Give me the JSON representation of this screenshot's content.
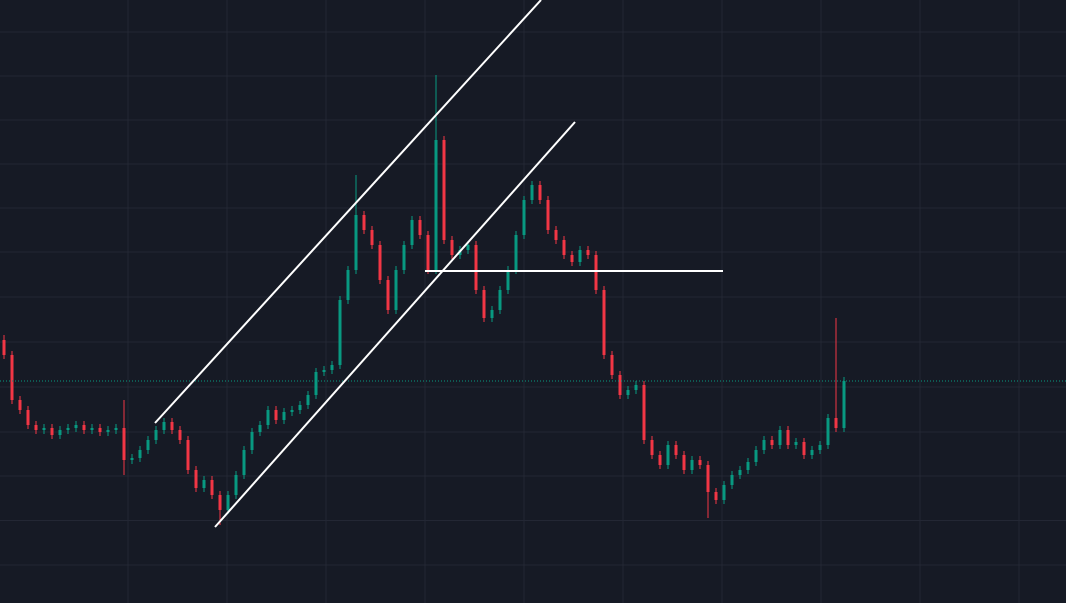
{
  "chart_data": {
    "type": "candlestick",
    "xlim": [
      -0.5,
      132.75
    ],
    "ylim": [
      0,
      603
    ],
    "xticks": [
      15.5,
      27.875,
      40.25,
      52.625,
      65,
      77.375,
      89.75,
      102.125,
      114.5,
      126.875
    ],
    "yticks": [
      38,
      82.5,
      127,
      171,
      216,
      261,
      306,
      351,
      395,
      439,
      483,
      527,
      571
    ],
    "grid": true,
    "up_color": "#089981",
    "down_color": "#f23645",
    "x": [
      0,
      1,
      2,
      3,
      4,
      5,
      6,
      7,
      8,
      9,
      10,
      11,
      12,
      13,
      14,
      15,
      16,
      17,
      18,
      19,
      20,
      21,
      22,
      23,
      24,
      25,
      26,
      27,
      28,
      29,
      30,
      31,
      32,
      33,
      34,
      35,
      36,
      37,
      38,
      39,
      40,
      41,
      42,
      43,
      44,
      45,
      46,
      47,
      48,
      49,
      50,
      51,
      52,
      53,
      54,
      55,
      56,
      57,
      58,
      59,
      60,
      61,
      62,
      63,
      64,
      65,
      66,
      67,
      68,
      69,
      70,
      71,
      72,
      73,
      74,
      75,
      76,
      77,
      78,
      79,
      80,
      81,
      82,
      83,
      84,
      85,
      86,
      87,
      88,
      89,
      90,
      91,
      92,
      93,
      94,
      95,
      96,
      97,
      98,
      99,
      100,
      101,
      102,
      103,
      104,
      105
    ],
    "open": [
      263,
      248,
      203,
      193,
      178,
      173,
      175,
      168,
      173,
      175,
      178,
      173,
      175,
      171,
      173,
      175,
      143,
      145,
      153,
      163,
      173,
      181,
      173,
      163,
      133,
      115,
      123,
      108,
      93,
      108,
      128,
      153,
      171,
      178,
      193,
      183,
      191,
      193,
      198,
      208,
      231,
      233,
      238,
      303,
      333,
      388,
      373,
      358,
      323,
      293,
      333,
      358,
      383,
      368,
      333,
      463,
      363,
      348,
      353,
      358,
      313,
      285,
      293,
      313,
      333,
      368,
      403,
      418,
      403,
      373,
      363,
      348,
      341,
      353,
      348,
      313,
      248,
      228,
      208,
      213,
      218,
      163,
      148,
      138,
      158,
      148,
      133,
      143,
      138,
      111,
      103,
      118,
      128,
      133,
      141,
      153,
      163,
      158,
      173,
      158,
      161,
      148,
      153,
      158,
      185,
      175
    ],
    "high": [
      268,
      252,
      207,
      197,
      182,
      179,
      179,
      177,
      179,
      182,
      182,
      179,
      179,
      177,
      179,
      203,
      149,
      157,
      167,
      177,
      185,
      185,
      177,
      167,
      137,
      127,
      127,
      112,
      112,
      132,
      157,
      175,
      182,
      197,
      197,
      195,
      197,
      202,
      212,
      235,
      237,
      242,
      307,
      337,
      428,
      392,
      377,
      362,
      327,
      337,
      362,
      387,
      387,
      372,
      528,
      467,
      367,
      357,
      362,
      362,
      317,
      297,
      317,
      337,
      372,
      407,
      422,
      422,
      407,
      377,
      367,
      352,
      357,
      357,
      352,
      317,
      252,
      232,
      217,
      222,
      222,
      167,
      152,
      162,
      162,
      152,
      147,
      147,
      142,
      115,
      122,
      132,
      137,
      145,
      157,
      167,
      167,
      177,
      177,
      165,
      165,
      157,
      162,
      189,
      285,
      226
    ],
    "low": [
      244,
      199,
      189,
      174,
      169,
      169,
      164,
      164,
      169,
      171,
      169,
      169,
      167,
      167,
      169,
      128,
      139,
      141,
      149,
      159,
      169,
      169,
      159,
      129,
      111,
      111,
      104,
      78,
      89,
      104,
      124,
      149,
      167,
      174,
      179,
      179,
      187,
      189,
      194,
      204,
      227,
      229,
      234,
      299,
      329,
      369,
      354,
      319,
      289,
      289,
      329,
      354,
      364,
      329,
      329,
      359,
      344,
      344,
      349,
      309,
      281,
      281,
      289,
      309,
      329,
      364,
      399,
      399,
      369,
      359,
      344,
      337,
      337,
      344,
      309,
      244,
      224,
      204,
      204,
      209,
      159,
      144,
      134,
      134,
      144,
      129,
      129,
      134,
      85,
      99,
      99,
      114,
      124,
      129,
      137,
      149,
      154,
      154,
      154,
      154,
      144,
      144,
      149,
      154,
      171,
      171
    ],
    "close": [
      248,
      203,
      193,
      178,
      173,
      175,
      168,
      173,
      175,
      178,
      173,
      175,
      171,
      173,
      175,
      143,
      145,
      153,
      163,
      173,
      181,
      173,
      163,
      133,
      115,
      123,
      108,
      93,
      108,
      128,
      153,
      171,
      178,
      193,
      183,
      191,
      193,
      198,
      208,
      231,
      233,
      238,
      303,
      333,
      388,
      373,
      358,
      323,
      293,
      333,
      358,
      383,
      368,
      333,
      463,
      363,
      348,
      353,
      358,
      313,
      285,
      293,
      313,
      333,
      368,
      403,
      418,
      403,
      373,
      363,
      348,
      341,
      353,
      348,
      313,
      248,
      228,
      208,
      213,
      218,
      163,
      148,
      138,
      158,
      148,
      133,
      143,
      138,
      111,
      103,
      118,
      128,
      133,
      141,
      153,
      163,
      158,
      173,
      158,
      161,
      148,
      153,
      158,
      185,
      175,
      222
    ],
    "drawings": [
      {
        "color": "#ffffff",
        "x": [
          18.875,
          67.125
        ],
        "y": [
          180,
          603
        ]
      },
      {
        "color": "#ffffff",
        "x": [
          26.375,
          71.375
        ],
        "y": [
          76,
          481
        ]
      },
      {
        "color": "#ffffff",
        "x": [
          52.625,
          89.875
        ],
        "y": [
          332,
          332
        ]
      }
    ]
  }
}
